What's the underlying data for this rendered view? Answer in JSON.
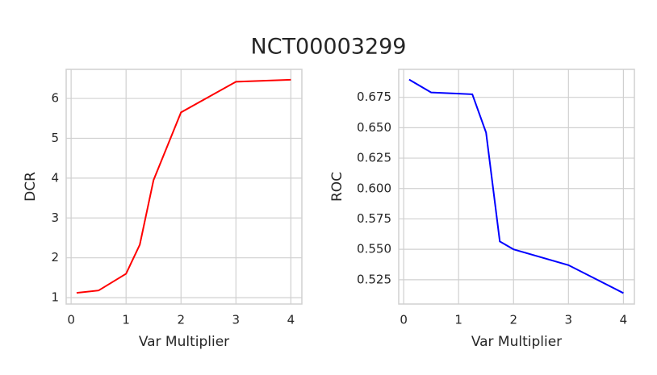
{
  "title": "NCT00003299",
  "chart_data": [
    {
      "type": "line",
      "xlabel": "Var Multiplier",
      "ylabel": "DCR",
      "x": [
        0.1,
        0.5,
        1,
        1.25,
        1.5,
        1.75,
        2,
        3,
        4
      ],
      "series": [
        {
          "name": "DCR",
          "color": "#ff0000",
          "values": [
            1.12,
            1.18,
            1.6,
            2.33,
            3.95,
            4.8,
            5.65,
            6.42,
            6.47
          ]
        }
      ],
      "xlim": [
        -0.09,
        4.2
      ],
      "ylim": [
        0.84,
        6.73
      ],
      "xticks": [
        0,
        1,
        2,
        3,
        4
      ],
      "yticks": [
        1,
        2,
        3,
        4,
        5,
        6
      ],
      "grid": true
    },
    {
      "type": "line",
      "xlabel": "Var Multiplier",
      "ylabel": "ROC",
      "x": [
        0.1,
        0.5,
        1,
        1.25,
        1.5,
        1.75,
        2,
        3,
        4
      ],
      "series": [
        {
          "name": "ROC",
          "color": "#0000ff",
          "values": [
            0.6896,
            0.679,
            0.678,
            0.6775,
            0.646,
            0.5565,
            0.55,
            0.537,
            0.514
          ]
        }
      ],
      "xlim": [
        -0.09,
        4.2
      ],
      "ylim": [
        0.505,
        0.698
      ],
      "xticks": [
        0,
        1,
        2,
        3,
        4
      ],
      "yticks": [
        {
          "value": 0.525,
          "label": "0.525"
        },
        {
          "value": 0.55,
          "label": "0.550"
        },
        {
          "value": 0.575,
          "label": "0.575"
        },
        {
          "value": 0.6,
          "label": "0.600"
        },
        {
          "value": 0.625,
          "label": "0.625"
        },
        {
          "value": 0.65,
          "label": "0.650"
        },
        {
          "value": 0.675,
          "label": "0.675"
        }
      ],
      "grid": true
    }
  ]
}
